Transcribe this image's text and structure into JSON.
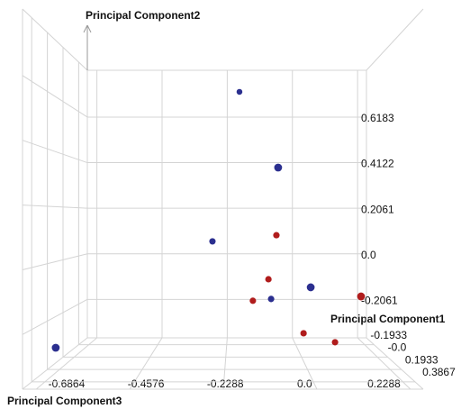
{
  "chart_data": {
    "type": "scatter3d",
    "x_label": "Principal Component3",
    "y_label": "Principal Component2",
    "z_label": "Principal Component1",
    "xlim": [
      -0.72,
      0.26
    ],
    "ylim": [
      -0.38,
      0.83
    ],
    "zlim": [
      -0.3,
      0.5
    ],
    "xticks": [
      -0.6864,
      -0.4576,
      -0.2288,
      {
        "value": 0,
        "label": "0.0"
      },
      0.2288
    ],
    "yticks": [
      -0.2061,
      {
        "value": 0,
        "label": "0.0"
      },
      0.2061,
      0.4122,
      0.6183
    ],
    "zticks": [
      -0.1933,
      {
        "value": 0,
        "label": "-0.0"
      },
      0.1933,
      0.3867
    ],
    "grid": true,
    "series": [
      {
        "color": "#2b2f8f",
        "x": [
          -0.187,
          -0.084,
          -0.269,
          -0.092,
          0.004,
          -0.685
        ],
        "y": [
          0.679,
          0.341,
          0.072,
          -0.153,
          -0.079,
          -0.291
        ],
        "z": [
          -0.1,
          0.25,
          0,
          0,
          0.25,
          0.25
        ]
      },
      {
        "color": "#b01c1c",
        "x": [
          -0.076,
          -0.1,
          -0.147,
          0.14,
          0.006,
          0.101
        ],
        "y": [
          0.096,
          -0.076,
          -0.16,
          -0.111,
          -0.287,
          -0.322
        ],
        "z": [
          0,
          0,
          0,
          0.25,
          0,
          0
        ]
      }
    ]
  }
}
